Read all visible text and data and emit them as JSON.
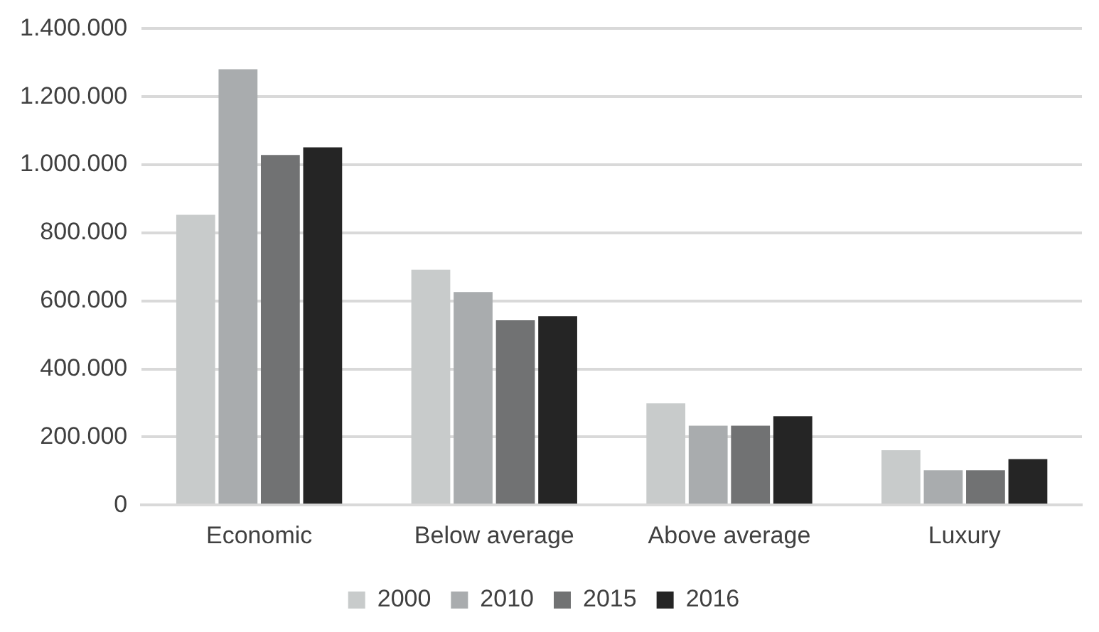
{
  "chart_data": {
    "type": "bar",
    "categories": [
      "Economic",
      "Below average",
      "Above average",
      "Luxury"
    ],
    "series": [
      {
        "name": "2000",
        "color": "#c8cbcb",
        "values": [
          853000,
          692000,
          299000,
          161000
        ]
      },
      {
        "name": "2010",
        "color": "#a9acae",
        "values": [
          1281000,
          626000,
          233000,
          102000
        ]
      },
      {
        "name": "2015",
        "color": "#717273",
        "values": [
          1029000,
          543000,
          233000,
          102000
        ]
      },
      {
        "name": "2016",
        "color": "#252525",
        "values": [
          1051000,
          555000,
          261000,
          135000
        ]
      }
    ],
    "ylim": [
      0,
      1400000
    ],
    "yticks": [
      0,
      {
        "value": 200000,
        "label": "200.000"
      },
      {
        "value": 400000,
        "label": "400.000"
      },
      {
        "value": 600000,
        "label": "600.000"
      },
      {
        "value": 800000,
        "label": "800.000"
      },
      {
        "value": 1000000,
        "label": "1.000.000"
      },
      {
        "value": 1200000,
        "label": "1.200.000"
      },
      {
        "value": 1400000,
        "label": "1.400.000"
      }
    ],
    "grid": "y",
    "legend": "bottom"
  }
}
